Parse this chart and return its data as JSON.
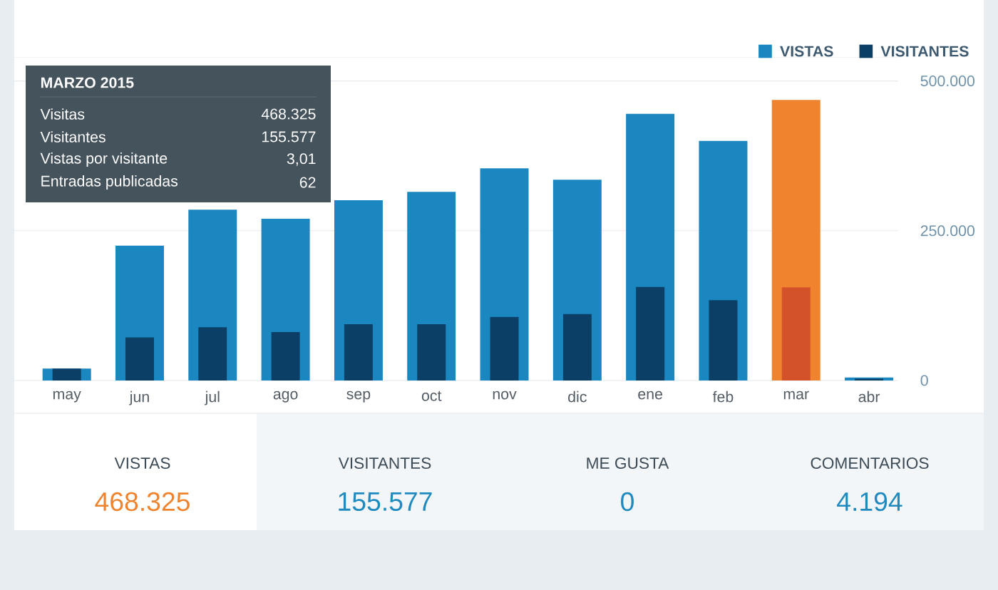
{
  "chart_data": {
    "type": "bar",
    "categories": [
      "may",
      "jun",
      "jul",
      "ago",
      "sep",
      "oct",
      "nov",
      "dic",
      "ene",
      "feb",
      "mar",
      "abr"
    ],
    "series": [
      {
        "name": "VISTAS",
        "color": "#1a87c0",
        "colors": [
          "#1a87c0",
          "#1a87c0",
          "#1a87c0",
          "#1a87c0",
          "#1a87c0",
          "#1a87c0",
          "#1a87c0",
          "#1a87c0",
          "#1a87c0",
          "#1a87c0",
          "#f0832e",
          "#1a87c0"
        ],
        "values": [
          20000,
          225000,
          285000,
          270000,
          301000,
          315000,
          354000,
          335000,
          445000,
          400000,
          468325,
          5000
        ]
      },
      {
        "name": "VISITANTES",
        "color": "#0b3f66",
        "colors": [
          "#0b3f66",
          "#0b3f66",
          "#0b3f66",
          "#0b3f66",
          "#0b3f66",
          "#0b3f66",
          "#0b3f66",
          "#0b3f66",
          "#0b3f66",
          "#0b3f66",
          "#d4522a",
          "#0b3f66"
        ],
        "values": [
          20000,
          72000,
          89000,
          81000,
          94000,
          94000,
          106000,
          111000,
          156000,
          134000,
          155577,
          3000
        ]
      }
    ],
    "ylim": [
      0,
      540000
    ],
    "yticks": [
      {
        "value": 0,
        "label": "0"
      },
      {
        "value": 250000,
        "label": "250.000"
      },
      {
        "value": 500000,
        "label": "500.000"
      }
    ],
    "grid": "y",
    "legend": "top right",
    "annotations": [
      "VISTAS",
      "468.325",
      "VISITANTES",
      "155.577",
      "ME GUSTA",
      "0",
      "COMENTARIOS",
      "4.194",
      "MARZO 2015",
      "Visitas",
      "468.325",
      "Visitantes",
      "155.577",
      "Vistas por visitante",
      "3,01",
      "Entradas publicadas",
      "62"
    ]
  }
}
